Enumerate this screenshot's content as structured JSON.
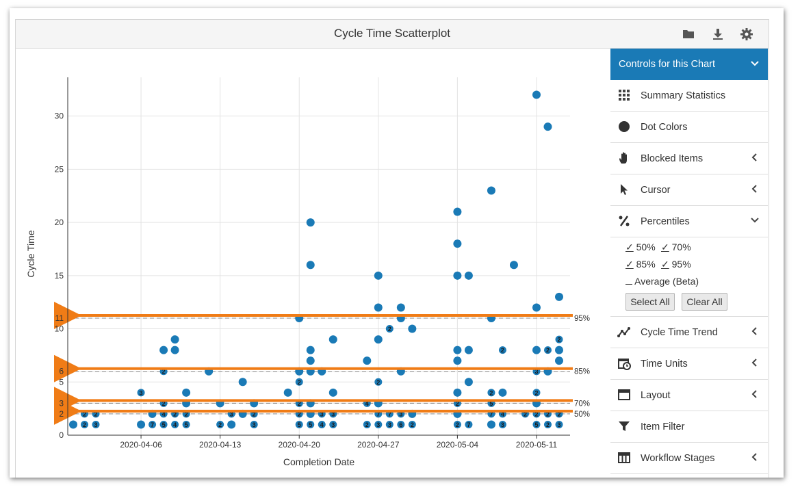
{
  "header": {
    "title": "Cycle Time Scatterplot",
    "icons": [
      "folder-icon",
      "download-icon",
      "gear-icon"
    ]
  },
  "colors": {
    "accent": "#1a7ab6",
    "dot": "#1a7ab6",
    "arrow": "#f07c16"
  },
  "sidebar": {
    "head_label": "Controls for this Chart",
    "items_top": [
      {
        "label": "Summary Statistics",
        "icon": "grid-icon",
        "chevron": "none"
      },
      {
        "label": "Dot Colors",
        "icon": "circle-icon",
        "chevron": "none"
      },
      {
        "label": "Blocked Items",
        "icon": "hand-icon",
        "chevron": "left"
      },
      {
        "label": "Cursor",
        "icon": "cursor-icon",
        "chevron": "left"
      },
      {
        "label": "Percentiles",
        "icon": "percent-icon",
        "chevron": "down"
      }
    ],
    "percentiles": {
      "p50": "50%",
      "p70": "70%",
      "p85": "85%",
      "p95": "95%",
      "avg": "Average (Beta)",
      "check_mark": "✓",
      "select_all": "Select All",
      "clear_all": "Clear All"
    },
    "items_bottom": [
      {
        "label": "Cycle Time Trend",
        "icon": "trend-icon",
        "chevron": "left"
      },
      {
        "label": "Time Units",
        "icon": "calendar-clock-icon",
        "chevron": "left"
      },
      {
        "label": "Layout",
        "icon": "layout-icon",
        "chevron": "left"
      },
      {
        "label": "Item Filter",
        "icon": "filter-icon",
        "chevron": "none"
      },
      {
        "label": "Workflow Stages",
        "icon": "table-icon",
        "chevron": "left"
      }
    ]
  },
  "chart_data": {
    "type": "scatter",
    "title": "",
    "xlabel": "Completion Date",
    "ylabel": "Cycle Time",
    "x_ticks": [
      "2020-04-06",
      "2020-04-13",
      "2020-04-20",
      "2020-04-27",
      "2020-05-04",
      "2020-05-11"
    ],
    "y_ticks": [
      "0",
      "2",
      "3",
      "5",
      "6",
      "10",
      "11",
      "15",
      "20",
      "25",
      "30"
    ],
    "ylim": [
      0,
      33
    ],
    "xlim": [
      "2020-03-31",
      "2020-05-13"
    ],
    "percentile_lines": [
      {
        "label": "95%",
        "value": 11
      },
      {
        "label": "85%",
        "value": 6
      },
      {
        "label": "70%",
        "value": 3
      },
      {
        "label": "50%",
        "value": 2
      }
    ],
    "points": [
      {
        "x": "2020-03-31",
        "y": 1
      },
      {
        "x": "2020-04-01",
        "y": 1,
        "n": "2"
      },
      {
        "x": "2020-04-01",
        "y": 2,
        "n": "2"
      },
      {
        "x": "2020-04-02",
        "y": 1,
        "n": "3"
      },
      {
        "x": "2020-04-02",
        "y": 2,
        "n": "2"
      },
      {
        "x": "2020-04-06",
        "y": 1
      },
      {
        "x": "2020-04-06",
        "y": 4,
        "n": "3"
      },
      {
        "x": "2020-04-07",
        "y": 1,
        "n": "7"
      },
      {
        "x": "2020-04-07",
        "y": 2
      },
      {
        "x": "2020-04-08",
        "y": 1,
        "n": "5"
      },
      {
        "x": "2020-04-08",
        "y": 2,
        "n": "4"
      },
      {
        "x": "2020-04-08",
        "y": 3,
        "n": "2"
      },
      {
        "x": "2020-04-08",
        "y": 6,
        "n": "2"
      },
      {
        "x": "2020-04-08",
        "y": 8
      },
      {
        "x": "2020-04-09",
        "y": 1,
        "n": "4"
      },
      {
        "x": "2020-04-09",
        "y": 2,
        "n": "2"
      },
      {
        "x": "2020-04-09",
        "y": 8
      },
      {
        "x": "2020-04-09",
        "y": 9
      },
      {
        "x": "2020-04-10",
        "y": 1,
        "n": "5"
      },
      {
        "x": "2020-04-10",
        "y": 2,
        "n": "2"
      },
      {
        "x": "2020-04-10",
        "y": 3
      },
      {
        "x": "2020-04-10",
        "y": 4
      },
      {
        "x": "2020-04-12",
        "y": 6
      },
      {
        "x": "2020-04-13",
        "y": 1,
        "n": "2"
      },
      {
        "x": "2020-04-13",
        "y": 3
      },
      {
        "x": "2020-04-14",
        "y": 1
      },
      {
        "x": "2020-04-14",
        "y": 2,
        "n": "3"
      },
      {
        "x": "2020-04-15",
        "y": 2
      },
      {
        "x": "2020-04-15",
        "y": 5
      },
      {
        "x": "2020-04-16",
        "y": 1,
        "n": "3"
      },
      {
        "x": "2020-04-16",
        "y": 2,
        "n": "2"
      },
      {
        "x": "2020-04-16",
        "y": 3
      },
      {
        "x": "2020-04-19",
        "y": 4
      },
      {
        "x": "2020-04-20",
        "y": 1,
        "n": "5"
      },
      {
        "x": "2020-04-20",
        "y": 2,
        "n": "2"
      },
      {
        "x": "2020-04-20",
        "y": 3,
        "n": "2"
      },
      {
        "x": "2020-04-20",
        "y": 5,
        "n": "2"
      },
      {
        "x": "2020-04-20",
        "y": 6
      },
      {
        "x": "2020-04-20",
        "y": 11
      },
      {
        "x": "2020-04-21",
        "y": 1,
        "n": "5"
      },
      {
        "x": "2020-04-21",
        "y": 2
      },
      {
        "x": "2020-04-21",
        "y": 3
      },
      {
        "x": "2020-04-21",
        "y": 6
      },
      {
        "x": "2020-04-21",
        "y": 7
      },
      {
        "x": "2020-04-21",
        "y": 8
      },
      {
        "x": "2020-04-21",
        "y": 16
      },
      {
        "x": "2020-04-21",
        "y": 20
      },
      {
        "x": "2020-04-22",
        "y": 1,
        "n": "4"
      },
      {
        "x": "2020-04-22",
        "y": 2,
        "n": "3"
      },
      {
        "x": "2020-04-22",
        "y": 6
      },
      {
        "x": "2020-04-23",
        "y": 1,
        "n": "3"
      },
      {
        "x": "2020-04-23",
        "y": 2,
        "n": "3"
      },
      {
        "x": "2020-04-23",
        "y": 4
      },
      {
        "x": "2020-04-23",
        "y": 9
      },
      {
        "x": "2020-04-26",
        "y": 1,
        "n": "2"
      },
      {
        "x": "2020-04-26",
        "y": 3,
        "n": "4"
      },
      {
        "x": "2020-04-26",
        "y": 7
      },
      {
        "x": "2020-04-27",
        "y": 1,
        "n": "3"
      },
      {
        "x": "2020-04-27",
        "y": 2,
        "n": "7"
      },
      {
        "x": "2020-04-27",
        "y": 3
      },
      {
        "x": "2020-04-27",
        "y": 5,
        "n": "2"
      },
      {
        "x": "2020-04-27",
        "y": 9
      },
      {
        "x": "2020-04-27",
        "y": 12
      },
      {
        "x": "2020-04-27",
        "y": 15
      },
      {
        "x": "2020-04-28",
        "y": 1,
        "n": "3"
      },
      {
        "x": "2020-04-28",
        "y": 2,
        "n": "7"
      },
      {
        "x": "2020-04-28",
        "y": 10,
        "n": "2"
      },
      {
        "x": "2020-04-29",
        "y": 1,
        "n": "6"
      },
      {
        "x": "2020-04-29",
        "y": 2,
        "n": "3"
      },
      {
        "x": "2020-04-29",
        "y": 6
      },
      {
        "x": "2020-04-29",
        "y": 11
      },
      {
        "x": "2020-04-29",
        "y": 12
      },
      {
        "x": "2020-04-30",
        "y": 1,
        "n": "2"
      },
      {
        "x": "2020-04-30",
        "y": 2
      },
      {
        "x": "2020-04-30",
        "y": 10
      },
      {
        "x": "2020-05-04",
        "y": 1,
        "n": "2"
      },
      {
        "x": "2020-05-04",
        "y": 2
      },
      {
        "x": "2020-05-04",
        "y": 3,
        "n": "2"
      },
      {
        "x": "2020-05-04",
        "y": 4
      },
      {
        "x": "2020-05-04",
        "y": 7
      },
      {
        "x": "2020-05-04",
        "y": 8
      },
      {
        "x": "2020-05-04",
        "y": 15
      },
      {
        "x": "2020-05-04",
        "y": 18
      },
      {
        "x": "2020-05-04",
        "y": 21
      },
      {
        "x": "2020-05-05",
        "y": 1,
        "n": "7"
      },
      {
        "x": "2020-05-05",
        "y": 5
      },
      {
        "x": "2020-05-05",
        "y": 8
      },
      {
        "x": "2020-05-05",
        "y": 15
      },
      {
        "x": "2020-05-07",
        "y": 1
      },
      {
        "x": "2020-05-07",
        "y": 2,
        "n": "7"
      },
      {
        "x": "2020-05-07",
        "y": 3,
        "n": "5"
      },
      {
        "x": "2020-05-07",
        "y": 4,
        "n": "2"
      },
      {
        "x": "2020-05-07",
        "y": 11
      },
      {
        "x": "2020-05-07",
        "y": 23
      },
      {
        "x": "2020-05-08",
        "y": 1,
        "n": "3"
      },
      {
        "x": "2020-05-08",
        "y": 2,
        "n": "4"
      },
      {
        "x": "2020-05-08",
        "y": 4
      },
      {
        "x": "2020-05-08",
        "y": 8,
        "n": "2"
      },
      {
        "x": "2020-05-09",
        "y": 16
      },
      {
        "x": "2020-05-10",
        "y": 2,
        "n": "2"
      },
      {
        "x": "2020-05-11",
        "y": 1,
        "n": "5"
      },
      {
        "x": "2020-05-11",
        "y": 2,
        "n": "2"
      },
      {
        "x": "2020-05-11",
        "y": 3
      },
      {
        "x": "2020-05-11",
        "y": 4,
        "n": "2"
      },
      {
        "x": "2020-05-11",
        "y": 6,
        "n": "3"
      },
      {
        "x": "2020-05-11",
        "y": 8
      },
      {
        "x": "2020-05-11",
        "y": 12
      },
      {
        "x": "2020-05-11",
        "y": 32
      },
      {
        "x": "2020-05-12",
        "y": 1,
        "n": "2"
      },
      {
        "x": "2020-05-12",
        "y": 2,
        "n": "2"
      },
      {
        "x": "2020-05-12",
        "y": 6
      },
      {
        "x": "2020-05-12",
        "y": 8,
        "n": "2"
      },
      {
        "x": "2020-05-12",
        "y": 29
      },
      {
        "x": "2020-05-13",
        "y": 1,
        "n": "3"
      },
      {
        "x": "2020-05-13",
        "y": 2,
        "n": "2"
      },
      {
        "x": "2020-05-13",
        "y": 7
      },
      {
        "x": "2020-05-13",
        "y": 8
      },
      {
        "x": "2020-05-13",
        "y": 9,
        "n": "2"
      },
      {
        "x": "2020-05-13",
        "y": 13
      }
    ]
  }
}
